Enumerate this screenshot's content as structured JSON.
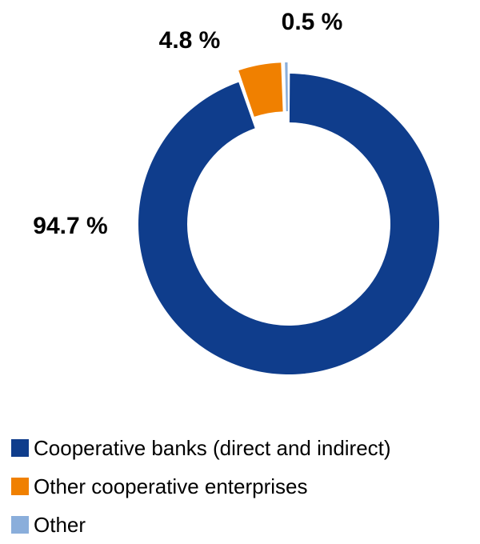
{
  "chart_data": {
    "type": "pie",
    "variant": "donut",
    "categories": [
      "Cooperative banks (direct and indirect)",
      "Other cooperative enterprises",
      "Other"
    ],
    "values": [
      94.7,
      4.8,
      0.5
    ],
    "value_labels": [
      "94.7 %",
      "4.8 %",
      "0.5 %"
    ],
    "colors": [
      "#0f3d8c",
      "#f08000",
      "#8aaedb"
    ],
    "exploded": [
      false,
      true,
      true
    ],
    "title": "",
    "legend_position": "bottom-left"
  }
}
